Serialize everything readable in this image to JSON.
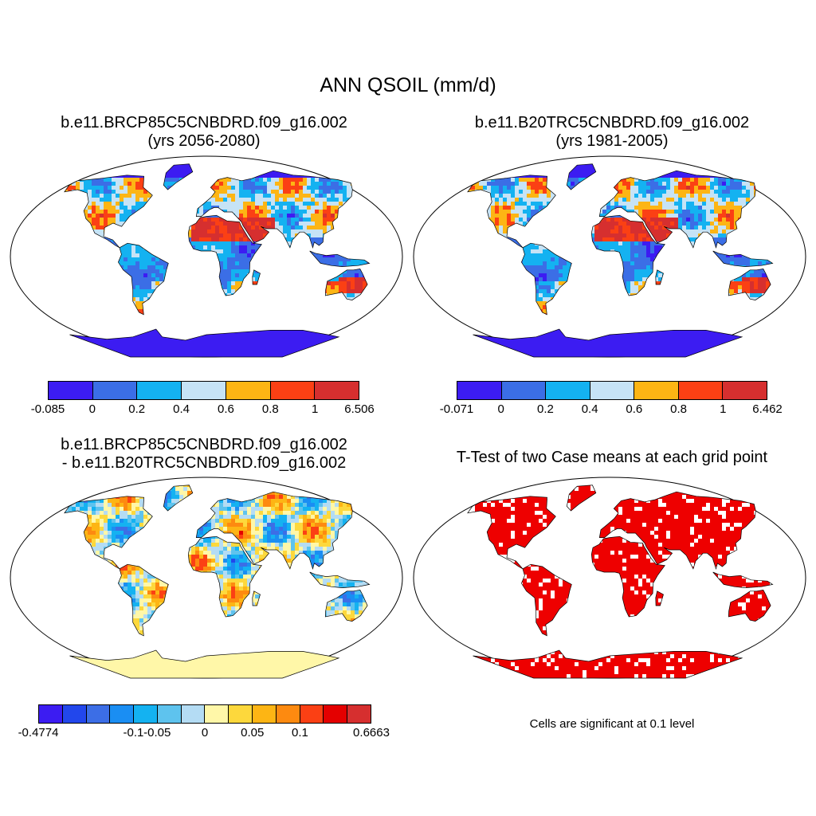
{
  "figure": {
    "title": "ANN QSOIL (mm/d)"
  },
  "panels": [
    {
      "id": "case1",
      "title_line1": "b.e11.BRCP85C5CNBDRD.f09_g16.002",
      "title_line2": "(yrs 2056-2080)",
      "palette": [
        "#3c1cf2",
        "#3b6ee6",
        "#14b2f1",
        "#c6e3f6",
        "#fdb514",
        "#fb4014",
        "#d62f2f"
      ],
      "colorbar_labels": [
        "-0.085",
        "0",
        "0.2",
        "0.4",
        "0.6",
        "0.8",
        "1",
        "6.506"
      ]
    },
    {
      "id": "case2",
      "title_line1": "b.e11.B20TRC5CNBDRD.f09_g16.002",
      "title_line2": "(yrs 1981-2005)",
      "palette": [
        "#3c1cf2",
        "#3b6ee6",
        "#14b2f1",
        "#c6e3f6",
        "#fdb514",
        "#fb4014",
        "#d62f2f"
      ],
      "colorbar_labels": [
        "-0.071",
        "0",
        "0.2",
        "0.4",
        "0.6",
        "0.8",
        "1",
        "6.462"
      ]
    },
    {
      "id": "diff",
      "title_line1": "b.e11.BRCP85C5CNBDRD.f09_g16.002",
      "title_line2": "- b.e11.B20TRC5CNBDRD.f09_g16.002",
      "palette": [
        "#3c1cf2",
        "#2247ec",
        "#3c6ee6",
        "#1a8ef3",
        "#14b2f1",
        "#5ec3ee",
        "#b4dcf4",
        "#fff7a8",
        "#fdd83c",
        "#fdb514",
        "#fd8a10",
        "#fb4014",
        "#e40000",
        "#d62f2f"
      ],
      "colorbar_labels": [
        "-0.4774",
        "-0.1",
        "-0.05",
        "0",
        "0.05",
        "0.1",
        "0.6663"
      ]
    },
    {
      "id": "ttest",
      "title_line1": "T-Test of two Case means at each grid point",
      "note": "Cells are significant at 0.1 level",
      "sig_color": "#ee0000"
    }
  ]
}
